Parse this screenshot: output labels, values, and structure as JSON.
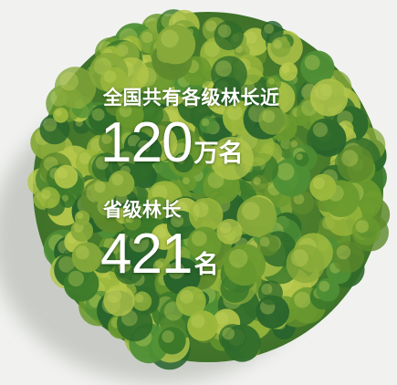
{
  "stats": [
    {
      "label": "全国共有各级林长近",
      "number": 120,
      "unit": "万名"
    },
    {
      "label": "省级林长",
      "number": 421,
      "unit": "名"
    }
  ]
}
